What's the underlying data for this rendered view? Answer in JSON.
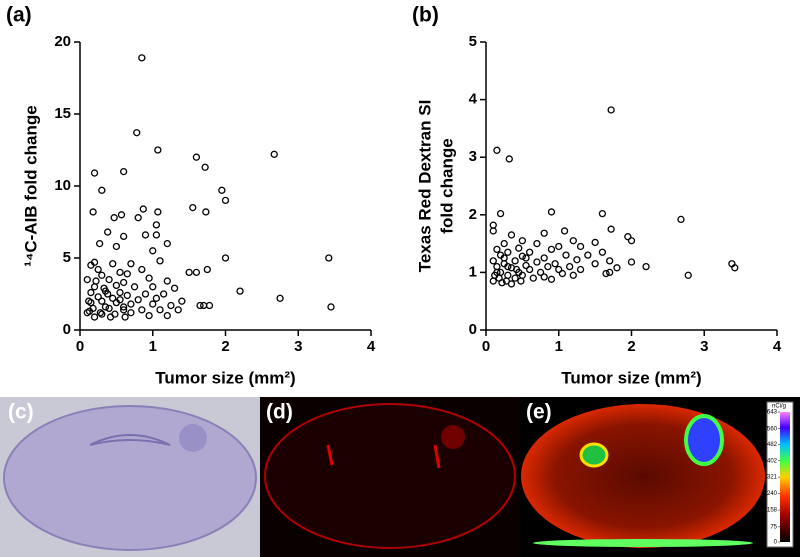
{
  "chart_data": [
    {
      "type": "scatter",
      "panel_label": "(a)",
      "xlabel": "Tumor size (mm²)",
      "ylabel": "¹⁴C-AIB fold change",
      "xlim": [
        0,
        4
      ],
      "xticks": [
        0,
        1,
        2,
        3,
        4
      ],
      "ylim": [
        0,
        20
      ],
      "yticks": [
        0,
        5,
        10,
        15,
        20
      ],
      "color": "#000000",
      "x": [
        0.85,
        0.78,
        1.07,
        1.6,
        2.67,
        1.72,
        0.2,
        0.6,
        0.3,
        1.95,
        2.0,
        1.55,
        0.87,
        1.07,
        1.73,
        0.18,
        0.57,
        0.8,
        0.47,
        1.05,
        0.38,
        0.9,
        1.05,
        0.6,
        1.2,
        0.27,
        1.0,
        0.5,
        2.0,
        3.42,
        0.2,
        0.15,
        0.45,
        0.7,
        1.1,
        1.75,
        1.5,
        1.6,
        0.25,
        0.55,
        0.85,
        0.3,
        0.65,
        0.95,
        0.1,
        0.4,
        1.2,
        0.6,
        0.2,
        0.5,
        0.75,
        1.0,
        1.3,
        2.2,
        0.15,
        0.35,
        0.55,
        0.9,
        1.15,
        0.25,
        0.45,
        0.65,
        0.8,
        1.05,
        1.4,
        2.75,
        0.12,
        0.3,
        0.5,
        0.7,
        1.0,
        1.25,
        1.65,
        1.78,
        1.7,
        3.45,
        0.18,
        0.4,
        0.6,
        0.85,
        1.1,
        1.35,
        0.1,
        0.28,
        0.48,
        0.7,
        0.95,
        1.2,
        0.2,
        0.42,
        0.62,
        0.35,
        0.15,
        0.55,
        0.22,
        0.38,
        0.3,
        0.6,
        0.13,
        0.33
      ],
      "values": [
        18.9,
        13.7,
        12.5,
        12.0,
        12.2,
        11.3,
        10.9,
        11.0,
        9.7,
        9.7,
        9.0,
        8.5,
        8.4,
        8.2,
        8.2,
        8.2,
        8.0,
        7.8,
        7.8,
        7.3,
        6.8,
        6.6,
        6.6,
        6.5,
        6.0,
        6.0,
        5.5,
        5.8,
        5.0,
        5.0,
        4.7,
        4.5,
        4.6,
        4.6,
        4.8,
        4.2,
        4.0,
        4.0,
        4.2,
        4.0,
        4.2,
        3.8,
        3.9,
        3.6,
        3.5,
        3.5,
        3.4,
        3.3,
        3.0,
        3.1,
        3.0,
        3.0,
        2.9,
        2.7,
        2.6,
        2.7,
        2.6,
        2.5,
        2.5,
        2.3,
        2.2,
        2.4,
        2.1,
        2.2,
        2.0,
        2.2,
        2.0,
        2.0,
        1.9,
        1.8,
        1.8,
        1.7,
        1.7,
        1.7,
        1.7,
        1.6,
        1.5,
        1.5,
        1.4,
        1.4,
        1.4,
        1.4,
        1.2,
        1.2,
        1.1,
        1.2,
        1.0,
        1.0,
        0.9,
        0.9,
        0.9,
        1.6,
        1.9,
        2.1,
        3.4,
        2.5,
        1.1,
        1.6,
        1.3,
        2.9
      ]
    },
    {
      "type": "scatter",
      "panel_label": "(b)",
      "xlabel": "Tumor size (mm²)",
      "ylabel": [
        "Texas Red Dextran SI",
        "fold change"
      ],
      "xlim": [
        0,
        4
      ],
      "xticks": [
        0,
        1,
        2,
        3,
        4
      ],
      "ylim": [
        0,
        5
      ],
      "yticks": [
        0,
        1,
        2,
        3,
        4,
        5
      ],
      "color": "#000000",
      "x": [
        1.72,
        0.15,
        0.32,
        2.68,
        0.9,
        1.6,
        0.1,
        0.2,
        0.1,
        1.95,
        2.0,
        1.72,
        0.35,
        0.8,
        1.08,
        0.5,
        1.2,
        1.5,
        0.25,
        0.7,
        1.0,
        1.3,
        0.15,
        0.45,
        0.9,
        1.6,
        0.3,
        0.6,
        1.1,
        1.4,
        0.2,
        0.5,
        0.8,
        1.25,
        1.7,
        2.0,
        3.38,
        0.1,
        0.4,
        0.7,
        0.95,
        1.5,
        2.2,
        3.42,
        0.25,
        0.55,
        0.85,
        1.15,
        1.8,
        0.15,
        0.35,
        0.6,
        1.0,
        1.3,
        0.2,
        0.45,
        0.75,
        1.05,
        1.7,
        0.12,
        0.3,
        0.5,
        0.8,
        1.2,
        2.78,
        1.65,
        0.18,
        0.4,
        0.65,
        0.9,
        0.1,
        0.28,
        0.48,
        0.22,
        0.35,
        0.15,
        0.3,
        0.25,
        0.42,
        0.55
      ],
      "values": [
        3.82,
        3.12,
        2.97,
        1.92,
        2.05,
        2.02,
        1.82,
        2.02,
        1.72,
        1.62,
        1.55,
        1.75,
        1.65,
        1.68,
        1.72,
        1.55,
        1.55,
        1.52,
        1.5,
        1.5,
        1.45,
        1.45,
        1.4,
        1.42,
        1.4,
        1.35,
        1.35,
        1.35,
        1.3,
        1.3,
        1.3,
        1.28,
        1.25,
        1.22,
        1.2,
        1.18,
        1.15,
        1.2,
        1.2,
        1.18,
        1.15,
        1.15,
        1.1,
        1.08,
        1.15,
        1.12,
        1.1,
        1.1,
        1.08,
        1.1,
        1.08,
        1.05,
        1.05,
        1.05,
        1.0,
        1.0,
        1.0,
        0.98,
        1.0,
        0.95,
        0.95,
        0.95,
        0.92,
        0.95,
        0.95,
        0.98,
        0.9,
        0.9,
        0.9,
        0.88,
        0.85,
        0.85,
        0.85,
        0.82,
        0.8,
        1.0,
        1.1,
        1.25,
        1.05,
        1.25
      ]
    }
  ],
  "images": {
    "labels": [
      "(c)",
      "(d)",
      "(e)"
    ],
    "colorbar": {
      "title": "nCi/g",
      "lim": [
        0,
        643
      ],
      "ticks": [
        643,
        560,
        482,
        402,
        321,
        240,
        158,
        75,
        0
      ]
    }
  }
}
